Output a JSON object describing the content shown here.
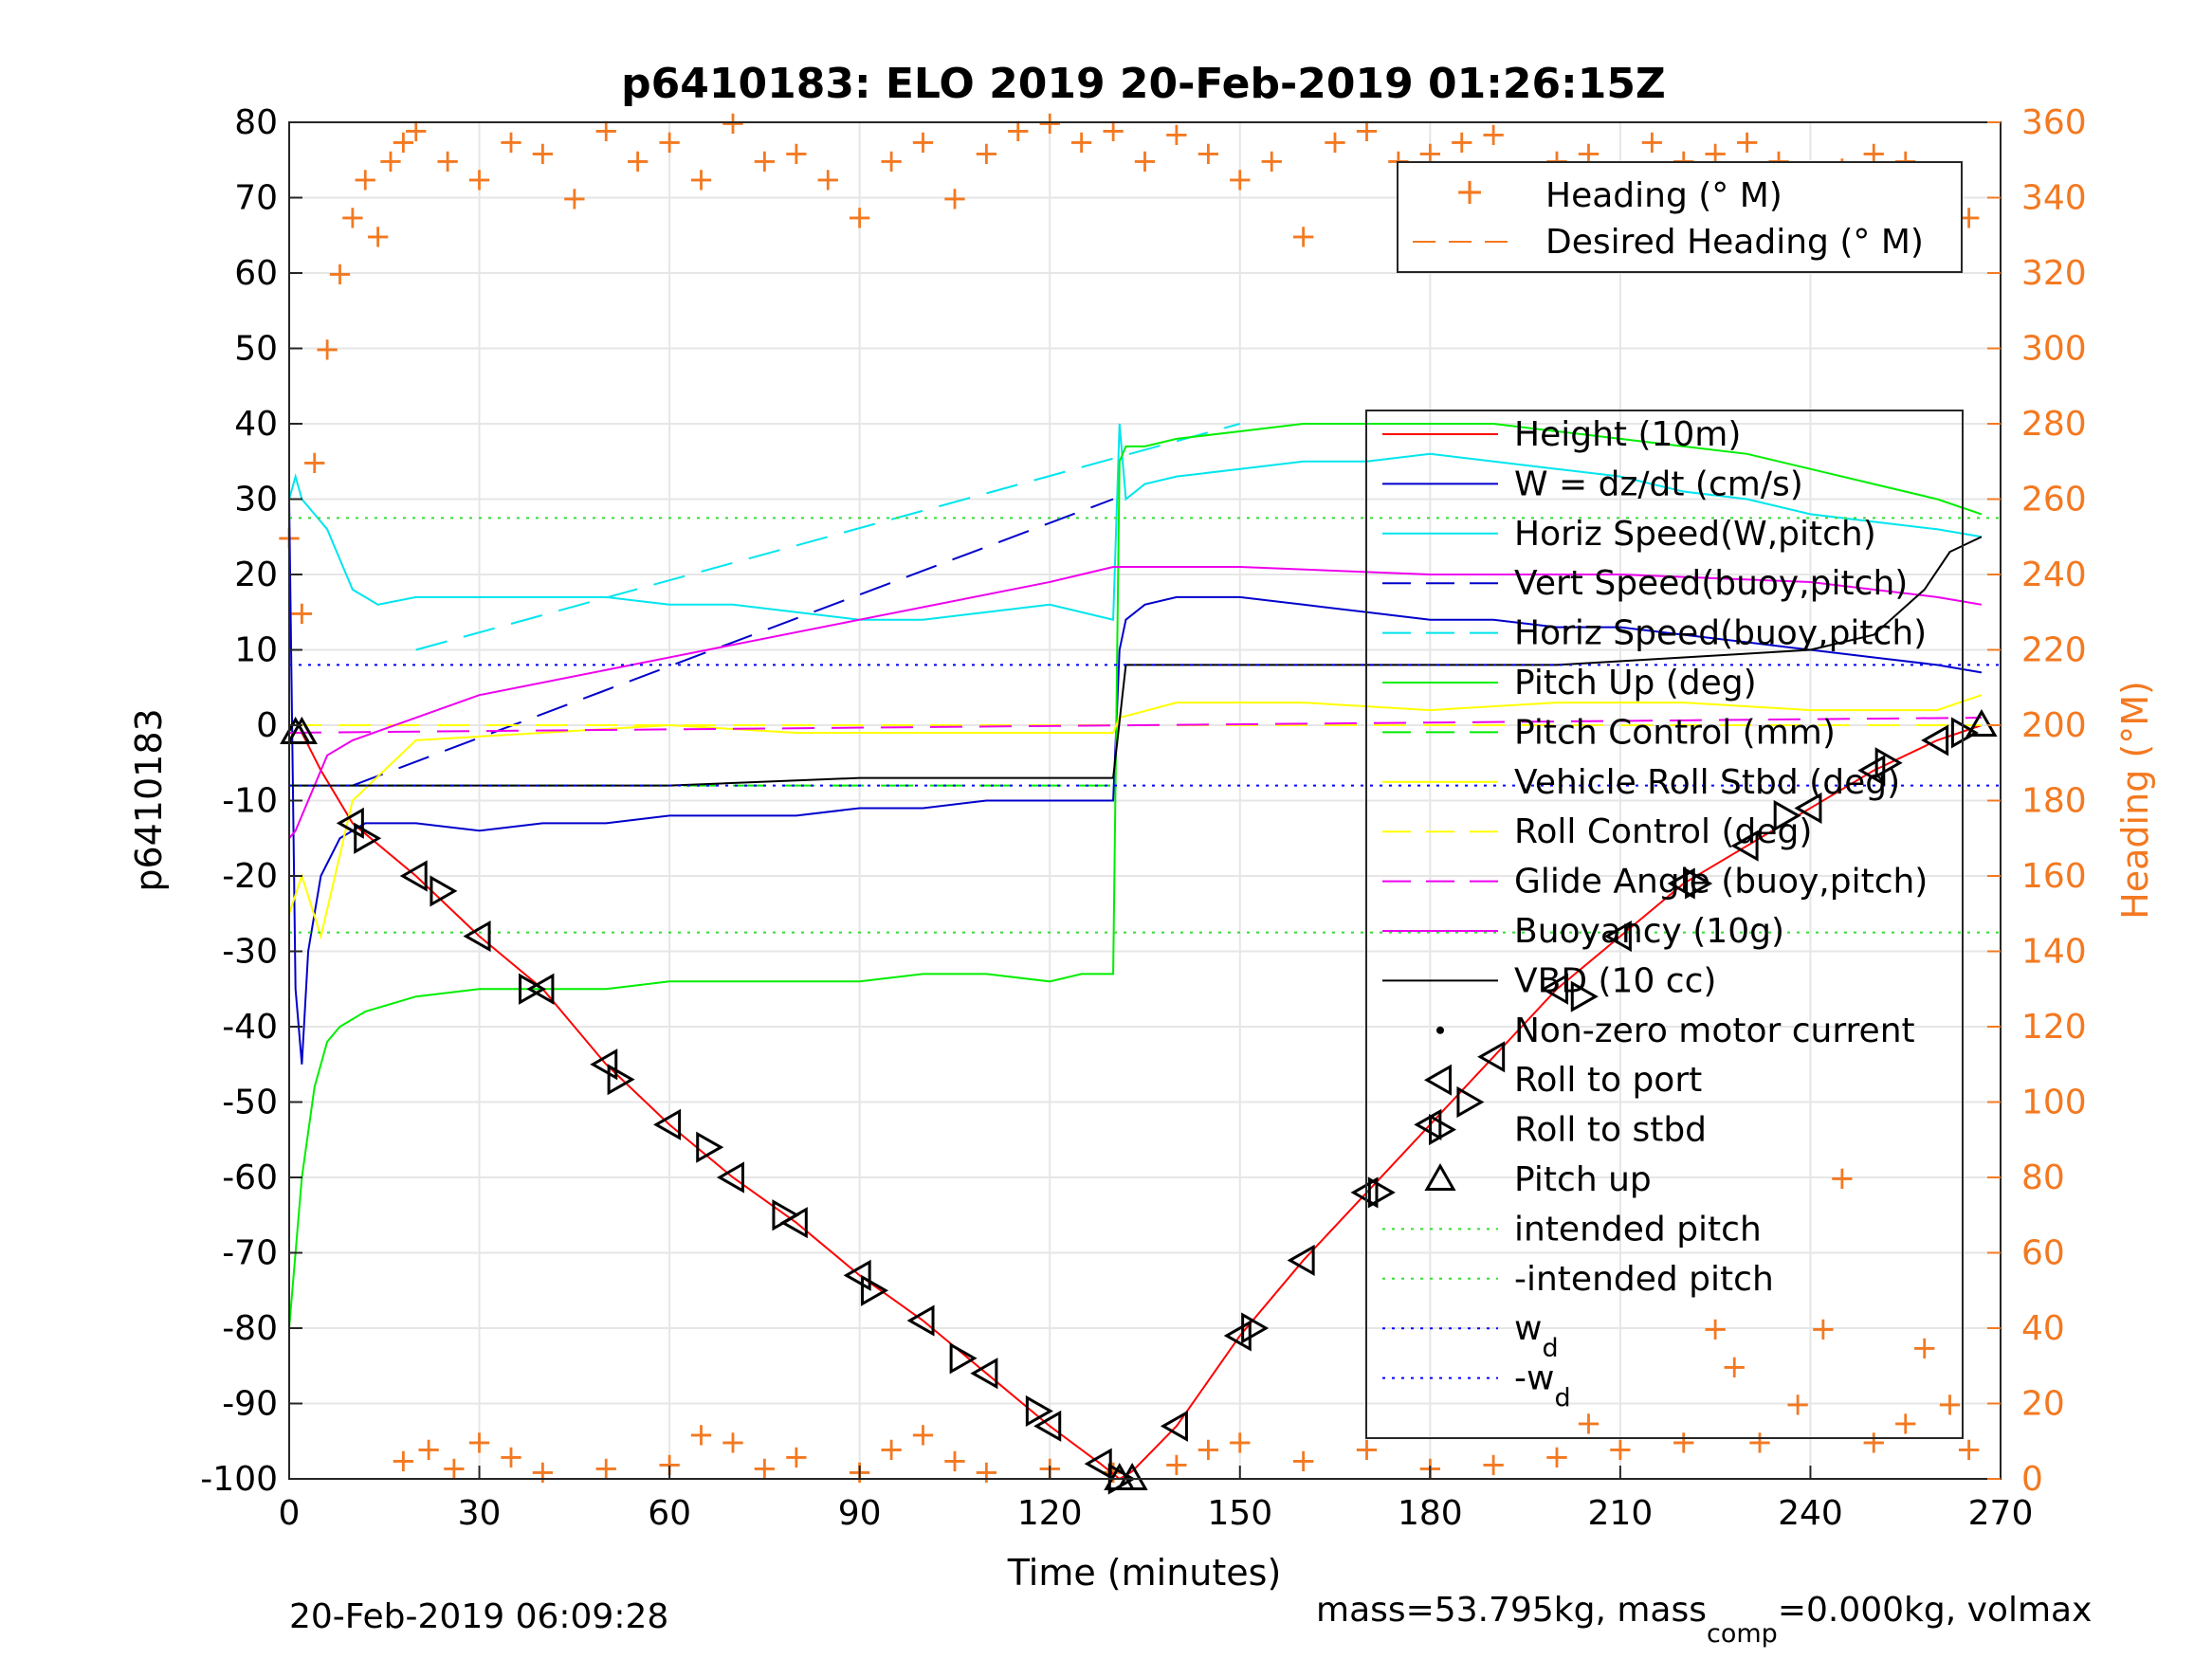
{
  "chart_data": {
    "type": "line",
    "title": "p6410183: ELO 2019 20-Feb-2019 01:26:15Z",
    "xlabel": "Time (minutes)",
    "ylabel": "p6410183",
    "ylabel_right": "Heading (°M)",
    "xlim": [
      0,
      270
    ],
    "ylim": [
      -100,
      80
    ],
    "ylim_right": [
      0,
      360
    ],
    "xticks": [
      "0",
      "30",
      "60",
      "90",
      "120",
      "150",
      "180",
      "210",
      "240",
      "270"
    ],
    "yticks": [
      "80",
      "70",
      "60",
      "50",
      "40",
      "30",
      "20",
      "10",
      "0",
      "-10",
      "-20",
      "-30",
      "-40",
      "-50",
      "-60",
      "-70",
      "-80",
      "-90",
      "-100"
    ],
    "yticks_right": [
      "360",
      "340",
      "320",
      "300",
      "280",
      "260",
      "240",
      "220",
      "200",
      "180",
      "160",
      "140",
      "120",
      "100",
      "80",
      "60",
      "40",
      "20",
      "0"
    ],
    "grid": true,
    "legend_heading": {
      "placement": "top-right",
      "entries": [
        "Heading (° M)",
        "Desired Heading (° M)"
      ]
    },
    "legend_main": {
      "placement": "right",
      "entries": [
        {
          "label": "Height (10m)",
          "color": "#ff0000",
          "style": "solid"
        },
        {
          "label": "W = dz/dt (cm/s)",
          "color": "#0000cc",
          "style": "solid"
        },
        {
          "label": "Horiz Speed(W,pitch)",
          "color": "#00e5ee",
          "style": "solid"
        },
        {
          "label": "Vert Speed(buoy,pitch)",
          "color": "#0000cc",
          "style": "dash"
        },
        {
          "label": "Horiz Speed(buoy,pitch)",
          "color": "#00e5ee",
          "style": "dash"
        },
        {
          "label": "Pitch Up (deg)",
          "color": "#00ee00",
          "style": "solid"
        },
        {
          "label": "Pitch Control (mm)",
          "color": "#00ee00",
          "style": "dash"
        },
        {
          "label": "Vehicle Roll Stbd (deg)",
          "color": "#ffff00",
          "style": "solid"
        },
        {
          "label": "Roll Control (deg)",
          "color": "#ffff00",
          "style": "dash"
        },
        {
          "label": "Glide Angle (buoy,pitch)",
          "color": "#ee00ee",
          "style": "dash"
        },
        {
          "label": "Buoyancy (10g)",
          "color": "#ee00ee",
          "style": "solid"
        },
        {
          "label": "VBD (10 cc)",
          "color": "#000000",
          "style": "solid"
        },
        {
          "label": "Non-zero motor current",
          "color": "#000000",
          "style": "dot"
        },
        {
          "label": "Roll to port",
          "color": "#000000",
          "style": "tri-left"
        },
        {
          "label": "Roll to stbd",
          "color": "#000000",
          "style": "tri-right"
        },
        {
          "label": "Pitch up",
          "color": "#000000",
          "style": "tri-up"
        },
        {
          "label": "intended pitch",
          "color": "#33dd33",
          "style": "dot"
        },
        {
          "label": "-intended pitch",
          "color": "#33dd33",
          "style": "dot"
        },
        {
          "label": "w",
          "sub": "d",
          "color": "#0000ff",
          "style": "dot"
        },
        {
          "label": "-w",
          "sub": "d",
          "color": "#0000ff",
          "style": "dot"
        }
      ]
    },
    "series": [
      {
        "name": "Height (10m)",
        "x": [
          0,
          2,
          5,
          10,
          20,
          30,
          40,
          50,
          60,
          70,
          80,
          90,
          100,
          110,
          120,
          128,
          131,
          133,
          140,
          150,
          160,
          170,
          180,
          190,
          200,
          210,
          220,
          230,
          240,
          250,
          260,
          267
        ],
        "y": [
          -1,
          -1,
          -6,
          -13,
          -20,
          -28,
          -35,
          -45,
          -53,
          -60,
          -66,
          -73,
          -79,
          -86,
          -93,
          -98,
          -100,
          -99,
          -93,
          -81,
          -71,
          -62,
          -53,
          -44,
          -35,
          -28,
          -21,
          -16,
          -11,
          -6,
          -2,
          0
        ]
      },
      {
        "name": "W = dz/dt (cm/s)",
        "x": [
          0,
          1,
          2,
          3,
          5,
          8,
          12,
          20,
          30,
          40,
          50,
          60,
          70,
          80,
          90,
          100,
          110,
          120,
          125,
          130,
          131,
          132,
          135,
          140,
          150,
          160,
          170,
          180,
          190,
          200,
          210,
          220,
          230,
          240,
          250,
          260,
          267
        ],
        "y": [
          30,
          -35,
          -45,
          -30,
          -20,
          -15,
          -13,
          -13,
          -14,
          -13,
          -13,
          -12,
          -12,
          -12,
          -11,
          -11,
          -10,
          -10,
          -10,
          -10,
          10,
          14,
          16,
          17,
          17,
          16,
          15,
          14,
          14,
          13,
          13,
          12,
          11,
          10,
          9,
          8,
          7
        ]
      },
      {
        "name": "Horiz Speed(W,pitch)",
        "x": [
          0,
          1,
          2,
          4,
          6,
          8,
          10,
          14,
          20,
          30,
          40,
          50,
          60,
          70,
          80,
          90,
          100,
          110,
          120,
          125,
          130,
          131,
          132,
          135,
          140,
          150,
          160,
          170,
          180,
          190,
          200,
          210,
          220,
          230,
          240,
          250,
          260,
          267
        ],
        "y": [
          30,
          33,
          30,
          28,
          26,
          22,
          18,
          16,
          17,
          17,
          17,
          17,
          16,
          16,
          15,
          14,
          14,
          15,
          16,
          15,
          14,
          40,
          30,
          32,
          33,
          34,
          35,
          35,
          36,
          35,
          34,
          33,
          31,
          30,
          28,
          27,
          26,
          25
        ]
      },
      {
        "name": "Vert Speed(buoy,pitch)",
        "x": [
          10,
          130
        ],
        "y": [
          -8,
          30
        ]
      },
      {
        "name": "Horiz Speed(buoy,pitch)",
        "x": [
          20,
          150
        ],
        "y": [
          10,
          40
        ]
      },
      {
        "name": "Pitch Up (deg)",
        "x": [
          0,
          1,
          2,
          4,
          6,
          8,
          12,
          20,
          30,
          40,
          50,
          60,
          70,
          80,
          90,
          100,
          110,
          120,
          125,
          129,
          130,
          131,
          132,
          135,
          140,
          150,
          160,
          170,
          180,
          190,
          200,
          210,
          220,
          230,
          240,
          250,
          260,
          267
        ],
        "y": [
          -80,
          -70,
          -60,
          -48,
          -42,
          -40,
          -38,
          -36,
          -35,
          -35,
          -35,
          -34,
          -34,
          -34,
          -34,
          -33,
          -33,
          -34,
          -33,
          -33,
          -33,
          35,
          37,
          37,
          38,
          39,
          40,
          40,
          40,
          40,
          39,
          38,
          37,
          36,
          34,
          32,
          30,
          28
        ]
      },
      {
        "name": "Pitch Control (mm)",
        "x": [
          0,
          130
        ],
        "y": [
          -8,
          -8
        ]
      },
      {
        "name": "Vehicle Roll Stbd (deg)",
        "x": [
          0,
          2,
          5,
          10,
          20,
          40,
          60,
          80,
          100,
          120,
          130,
          131,
          140,
          160,
          180,
          200,
          220,
          240,
          260,
          267
        ],
        "y": [
          -25,
          -20,
          -28,
          -10,
          -2,
          -1,
          0,
          -1,
          -1,
          -1,
          -1,
          1,
          3,
          3,
          2,
          3,
          3,
          2,
          2,
          4
        ]
      },
      {
        "name": "Roll Control (deg)",
        "x": [
          0,
          267
        ],
        "y": [
          0,
          0
        ]
      },
      {
        "name": "Glide Angle (buoy,pitch)",
        "x": [
          0,
          267
        ],
        "y": [
          -1,
          1
        ]
      },
      {
        "name": "Buoyancy (10g)",
        "x": [
          0,
          1,
          2,
          4,
          6,
          10,
          30,
          60,
          90,
          120,
          130,
          133,
          150,
          180,
          210,
          240,
          260,
          267
        ],
        "y": [
          -15,
          -14,
          -12,
          -8,
          -4,
          -2,
          4,
          9,
          14,
          19,
          21,
          21,
          21,
          20,
          20,
          19,
          17,
          16
        ]
      },
      {
        "name": "VBD (10 cc)",
        "x": [
          0,
          3,
          10,
          30,
          60,
          90,
          120,
          128,
          130,
          132,
          140,
          160,
          180,
          200,
          220,
          240,
          250,
          258,
          262,
          267
        ],
        "y": [
          -8,
          -8,
          -8,
          -8,
          -8,
          -7,
          -7,
          -7,
          -7,
          8,
          8,
          8,
          8,
          8,
          9,
          10,
          12,
          18,
          23,
          25
        ]
      },
      {
        "name": "Roll to port",
        "x": [
          10,
          20,
          30,
          40,
          50,
          60,
          70,
          80,
          90,
          100,
          110,
          120,
          128,
          140,
          150,
          160,
          170,
          180,
          190,
          200,
          210,
          220,
          230,
          240,
          250,
          260
        ],
        "y": [
          -13,
          -20,
          -28,
          -35,
          -45,
          -53,
          -60,
          -66,
          -73,
          -79,
          -86,
          -93,
          -98,
          -93,
          -81,
          -71,
          -62,
          -53,
          -44,
          -35,
          -28,
          -21,
          -16,
          -11,
          -6,
          -2
        ]
      },
      {
        "name": "Roll to stbd",
        "x": [
          12,
          24,
          38,
          52,
          66,
          78,
          92,
          106,
          118,
          131,
          152,
          172,
          186,
          204,
          222,
          236,
          252,
          264
        ],
        "y": [
          -15,
          -22,
          -35,
          -47,
          -56,
          -65,
          -75,
          -84,
          -91,
          -100,
          -80,
          -62,
          -50,
          -36,
          -21,
          -12,
          -5,
          -1
        ]
      },
      {
        "name": "Pitch up",
        "x": [
          1,
          2,
          131,
          133,
          267
        ],
        "y": [
          -1,
          -1,
          -100,
          -100,
          0
        ]
      },
      {
        "name": "intended pitch",
        "x": [
          0,
          270
        ],
        "y": [
          27.5,
          27.5
        ]
      },
      {
        "name": "-intended pitch",
        "x": [
          0,
          270
        ],
        "y": [
          -27.5,
          -27.5
        ]
      },
      {
        "name": "w_d",
        "x": [
          0,
          270
        ],
        "y": [
          8,
          8
        ]
      },
      {
        "name": "-w_d",
        "x": [
          0,
          270
        ],
        "y": [
          -8,
          -8
        ]
      },
      {
        "name": "Heading (° M)",
        "axis": "right",
        "x": [
          0,
          2,
          4,
          6,
          8,
          10,
          12,
          14,
          16,
          18,
          20,
          25,
          30,
          35,
          40,
          45,
          50,
          55,
          60,
          65,
          70,
          75,
          80,
          85,
          90,
          95,
          100,
          105,
          110,
          115,
          120,
          125,
          130,
          135,
          140,
          145,
          150,
          155,
          160,
          165,
          170,
          175,
          180,
          185,
          190,
          195,
          200,
          205,
          210,
          215,
          220,
          225,
          230,
          235,
          240,
          245,
          250,
          255,
          260,
          265
        ],
        "y": [
          250,
          230,
          270,
          300,
          320,
          335,
          345,
          330,
          350,
          355,
          358,
          350,
          345,
          355,
          352,
          340,
          358,
          350,
          355,
          345,
          360,
          350,
          352,
          345,
          335,
          350,
          355,
          340,
          352,
          358,
          360,
          355,
          358,
          350,
          357,
          352,
          345,
          350,
          330,
          355,
          358,
          350,
          352,
          355,
          357,
          345,
          350,
          352,
          345,
          355,
          350,
          352,
          355,
          350,
          340,
          348,
          352,
          350,
          345,
          335
        ]
      },
      {
        "name": "Heading (° M) low",
        "axis": "right",
        "x": [
          18,
          22,
          26,
          30,
          35,
          40,
          50,
          60,
          65,
          70,
          75,
          80,
          90,
          95,
          100,
          105,
          110,
          120,
          130,
          140,
          145,
          150,
          160,
          170,
          180,
          190,
          200,
          205,
          210,
          220,
          225,
          228,
          232,
          238,
          242,
          245,
          250,
          255,
          258,
          262,
          265
        ],
        "y": [
          5,
          8,
          3,
          10,
          6,
          2,
          3,
          4,
          12,
          10,
          3,
          6,
          2,
          8,
          12,
          5,
          2,
          3,
          2,
          4,
          8,
          10,
          5,
          8,
          3,
          4,
          6,
          15,
          8,
          10,
          40,
          30,
          10,
          20,
          40,
          80,
          10,
          15,
          35,
          20,
          8
        ]
      }
    ]
  },
  "footer": {
    "timestamp": "20-Feb-2019 06:09:28",
    "mass_text_a": "mass=53.795kg, mass",
    "mass_sub": "comp",
    "mass_text_b": "=0.000kg, volmax"
  }
}
